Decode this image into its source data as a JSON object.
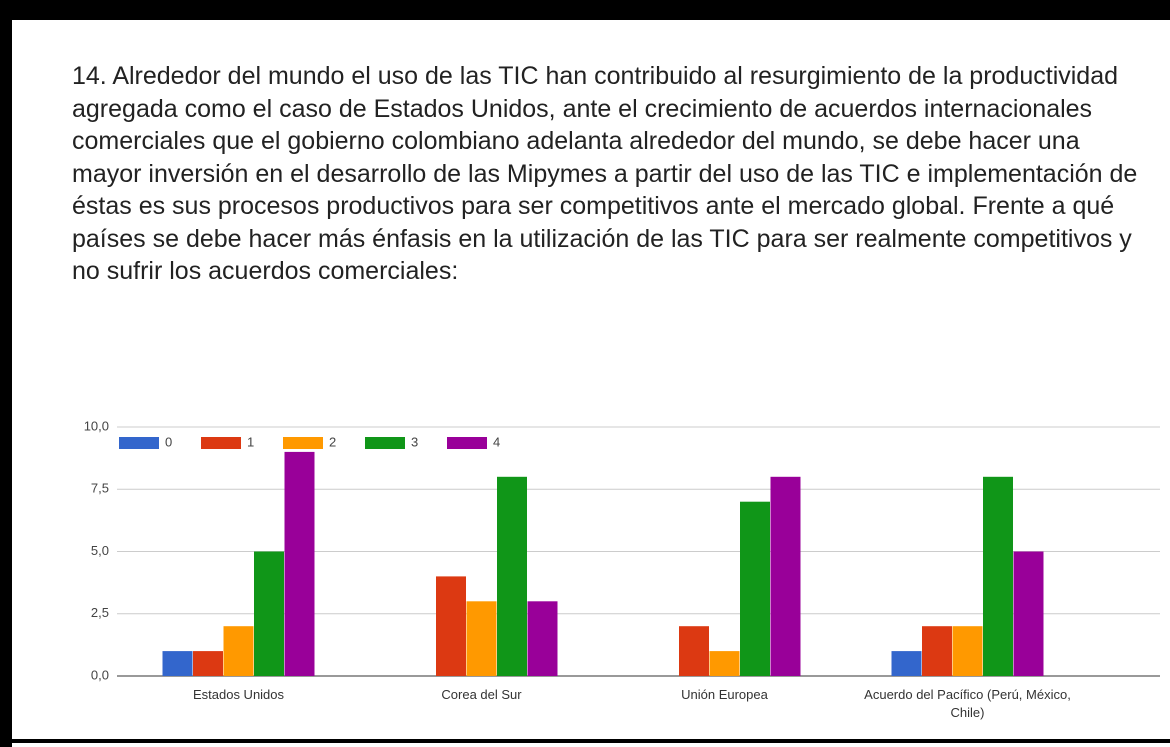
{
  "question": "14. Alrededor del mundo el uso de las TIC han contribuido al resurgimiento de la productividad agregada como el caso de Estados Unidos, ante el crecimiento de acuerdos internacionales comerciales que el gobierno colombiano adelanta alrededor del mundo, se debe hacer una mayor inversión en el desarrollo de las Mipymes a partir del uso de las TIC e implementación de éstas es sus procesos productivos para ser competitivos ante el mercado global. Frente a qué países se debe hacer más énfasis en la utilización de las TIC para ser realmente competitivos y no sufrir los acuerdos comerciales:",
  "chart_data": {
    "type": "bar",
    "categories": [
      "Estados Unidos",
      "Corea del Sur",
      "Unión Europea",
      "Acuerdo del Pacífico (Perú, México, Chile)"
    ],
    "series": [
      {
        "name": "0",
        "color": "#3366cc",
        "values": [
          1,
          0,
          0,
          1
        ]
      },
      {
        "name": "1",
        "color": "#dc3912",
        "values": [
          1,
          4,
          2,
          2
        ]
      },
      {
        "name": "2",
        "color": "#ff9900",
        "values": [
          2,
          3,
          1,
          2
        ]
      },
      {
        "name": "3",
        "color": "#109618",
        "values": [
          5,
          8,
          7,
          8
        ]
      },
      {
        "name": "4",
        "color": "#990099",
        "values": [
          9,
          3,
          8,
          5
        ]
      }
    ],
    "ylim": [
      0,
      10
    ],
    "yticks": [
      {
        "value": 0,
        "label": "0,0"
      },
      {
        "value": 2.5,
        "label": "2,5"
      },
      {
        "value": 5,
        "label": "5,0"
      },
      {
        "value": 7.5,
        "label": "7,5"
      },
      {
        "value": 10,
        "label": "10,0"
      }
    ],
    "grid": true,
    "legend": "top-left"
  }
}
